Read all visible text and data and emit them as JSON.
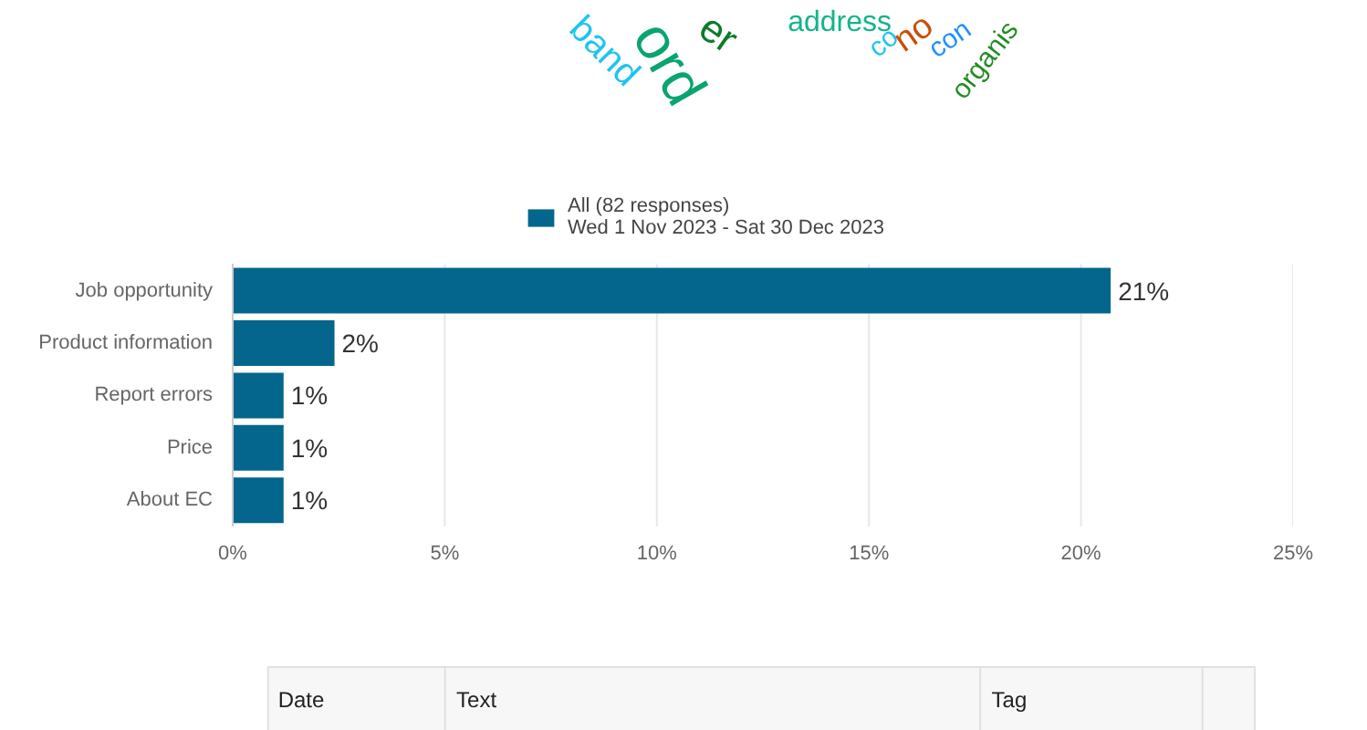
{
  "chart_data": [
    {
      "type": "other",
      "annotations": [
        "band",
        "ord",
        "er",
        "address",
        "co",
        "no",
        "con",
        "organis"
      ],
      "colors": [
        "#1ec4f0",
        "#0aa56e",
        "#0a7d28",
        "#14b48c",
        "#1ec4f0",
        "#c8500a",
        "#1e90ff",
        "#238c23"
      ]
    },
    {
      "type": "bar",
      "orientation": "horizontal",
      "categories": [
        "Job opportunity",
        "Product information",
        "Report errors",
        "Price",
        "About EC"
      ],
      "series": [
        {
          "name": "All (82 responses)\nWed 1 Nov 2023 - Sat 30 Dec 2023",
          "color": "#04668c",
          "values": [
            20.7,
            2.4,
            1.2,
            1.2,
            1.2
          ],
          "value_labels": [
            "21%",
            "2%",
            "1%",
            "1%",
            "1%"
          ]
        }
      ],
      "xlim": [
        0,
        25
      ],
      "xticks": [
        {
          "value": 0,
          "label": "0%"
        },
        {
          "value": 5,
          "label": "5%"
        },
        {
          "value": 10,
          "label": "10%"
        },
        {
          "value": 15,
          "label": "15%"
        },
        {
          "value": 20,
          "label": "20%"
        },
        {
          "value": 25,
          "label": "25%"
        }
      ],
      "grid": "x",
      "legend": "top"
    },
    {
      "type": "other",
      "annotations": [
        "Date",
        "Text",
        "Tag"
      ]
    }
  ]
}
